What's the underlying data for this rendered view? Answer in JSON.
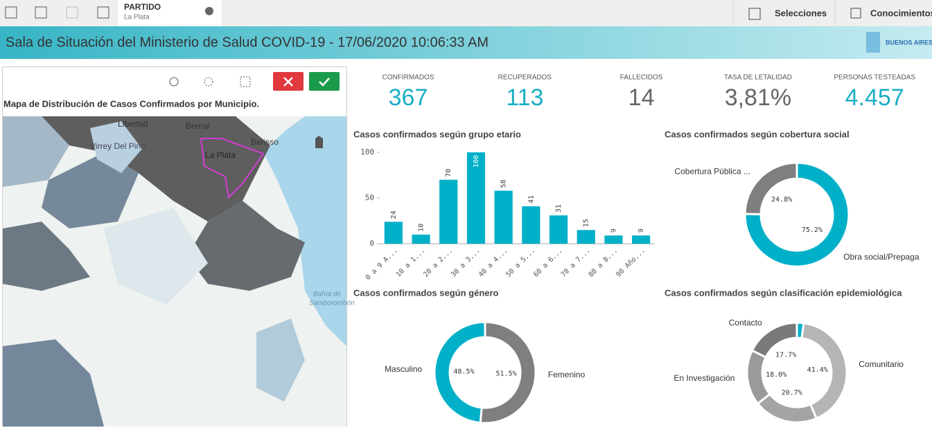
{
  "toolbar": {
    "field": "PARTIDO",
    "value": "La Plata",
    "buttons": [
      "Selecciones",
      "Conocimientos"
    ]
  },
  "header": {
    "title": "Sala de Situación del Ministerio de Salud COVID-19 - 17/06/2020 10:06:33 AM",
    "logo": "BUENOS AIRES"
  },
  "kpis": [
    {
      "label": "CONFIRMADOS",
      "value": "367",
      "color": "#1aaec4"
    },
    {
      "label": "RECUPERADOS",
      "value": "113",
      "color": "#1aaec4"
    },
    {
      "label": "FALLECIDOS",
      "value": "14",
      "color": "#666666"
    },
    {
      "label": "TASA DE LETALIDAD",
      "value": "3,81%",
      "color": "#666666"
    },
    {
      "label": "PERSONAS TESTEADAS",
      "value": "4.457",
      "color": "#1aaec4"
    }
  ],
  "map": {
    "title": "Mapa de Distribución de Casos Confirmados por Municipio.",
    "labels": [
      "Libertad",
      "Bernal",
      "Berisso",
      "Virrey Del Pino",
      "La Plata",
      "Bahía de",
      "Samborombón"
    ]
  },
  "chart_data": [
    {
      "type": "bar",
      "title": "Casos confirmados según grupo etario",
      "categories": [
        "0 a 9 A...",
        "10 a 1...",
        "20 a 2...",
        "30 a 3...",
        "40 a 4...",
        "50 a 5...",
        "60 a 6...",
        "70 a 7...",
        "80 a 8...",
        "90 Año..."
      ],
      "values": [
        24,
        10,
        70,
        100,
        58,
        41,
        31,
        15,
        9,
        9
      ],
      "color": "#00b0c8",
      "ylim": [
        0,
        100
      ],
      "yticks": [
        0,
        50,
        100
      ]
    },
    {
      "type": "donut",
      "title": "Casos confirmados según cobertura social",
      "categories": [
        "Obra social/Prepaga",
        "Cobertura Pública ..."
      ],
      "values": [
        75.2,
        24.8
      ],
      "value_labels": [
        "75.2%",
        "24.8%"
      ],
      "colors": [
        "#00b0c8",
        "#7f7f7f"
      ]
    },
    {
      "type": "donut",
      "title": "Casos confirmados según género",
      "categories": [
        "Femenino",
        "Masculino"
      ],
      "values": [
        51.5,
        48.5
      ],
      "value_labels": [
        "51.5%",
        "48.5%"
      ],
      "colors": [
        "#7f7f7f",
        "#00b0c8"
      ]
    },
    {
      "type": "donut",
      "title": "Casos confirmados según clasificación epidemiológica",
      "categories": [
        null,
        "Comunitario",
        null,
        "En Investigación",
        "Contacto"
      ],
      "values": [
        2.2,
        41.4,
        20.7,
        18.0,
        17.7
      ],
      "value_labels": [
        null,
        "41.4%",
        "20.7%",
        "18.0%",
        "17.7%"
      ],
      "colors": [
        "#00b0c8",
        "#b5b5b5",
        "#a4a4a4",
        "#9a9a9a",
        "#7a7a7a"
      ]
    }
  ]
}
